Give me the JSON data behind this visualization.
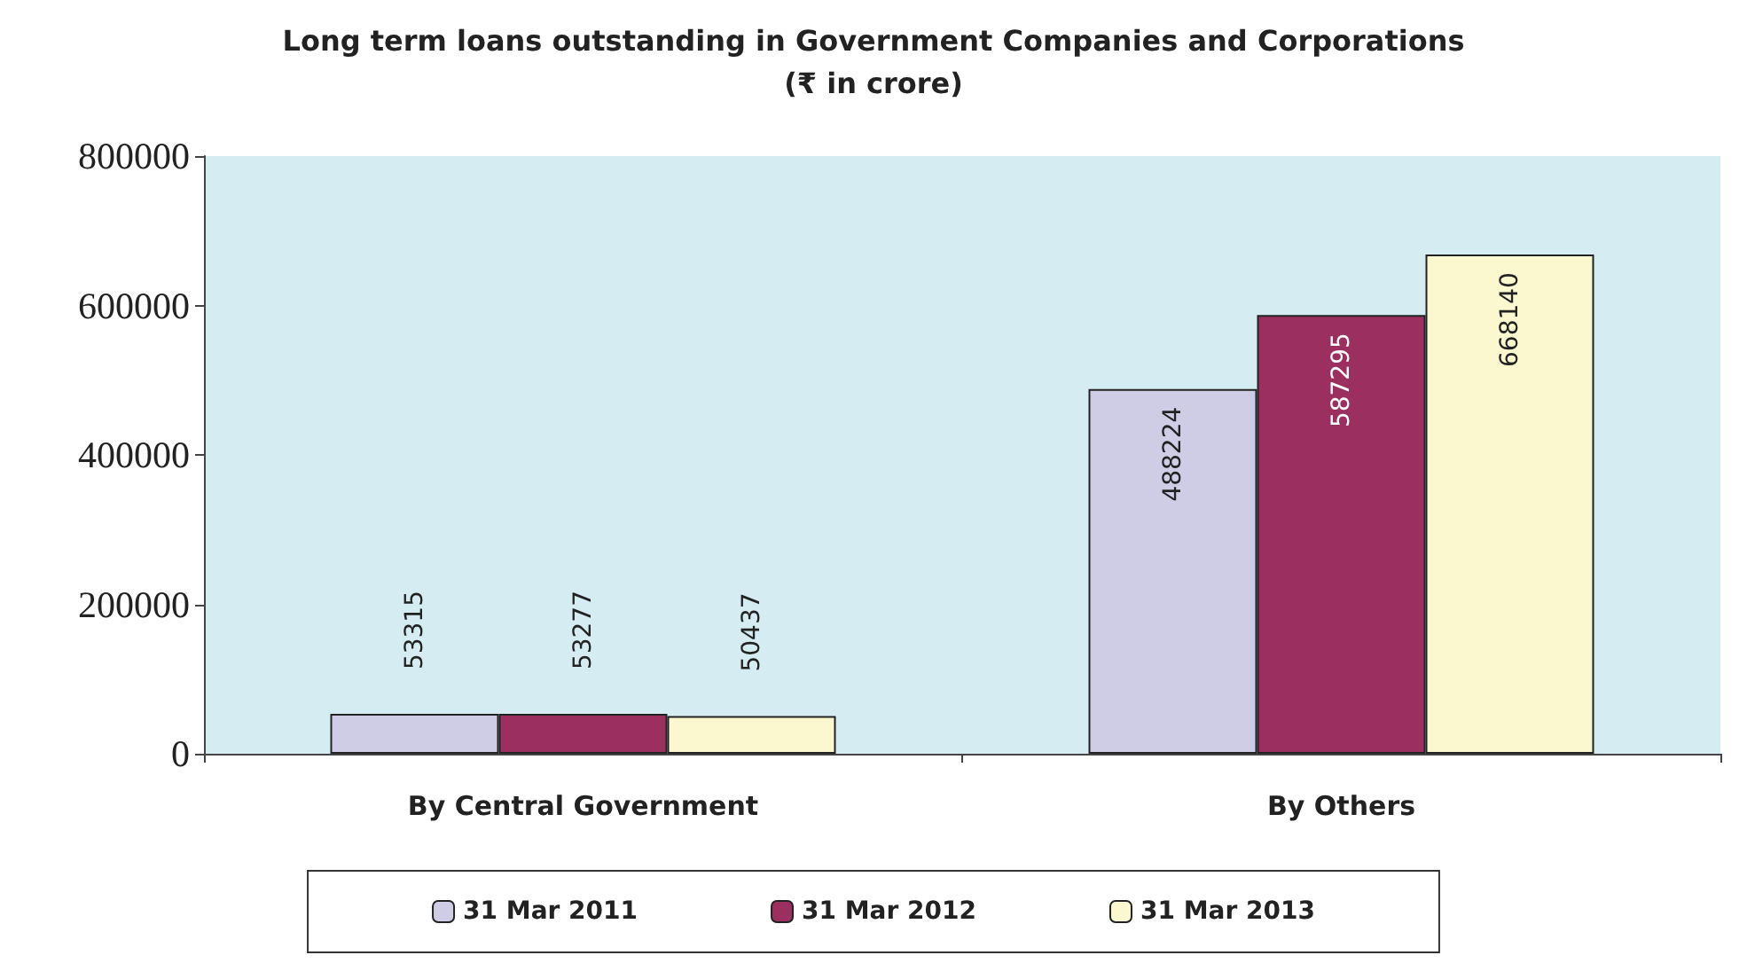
{
  "chart_data": {
    "type": "bar",
    "title": "Long term loans outstanding in Government Companies and Corporations\n(₹ in crore)",
    "categories": [
      "By Central Government",
      "By Others"
    ],
    "series": [
      {
        "name": "31 Mar 2011",
        "color": "#cfcde6",
        "values": [
          53315,
          488224
        ]
      },
      {
        "name": "31 Mar 2012",
        "color": "#9b3060",
        "values": [
          53277,
          587295
        ]
      },
      {
        "name": "31 Mar 2013",
        "color": "#fbf7cf",
        "values": [
          50437,
          668140
        ]
      }
    ],
    "ylim": [
      0,
      800000
    ],
    "yticks": [
      0,
      200000,
      400000,
      600000,
      800000
    ],
    "data_labels": true,
    "grid": false,
    "legend": "bottom"
  }
}
